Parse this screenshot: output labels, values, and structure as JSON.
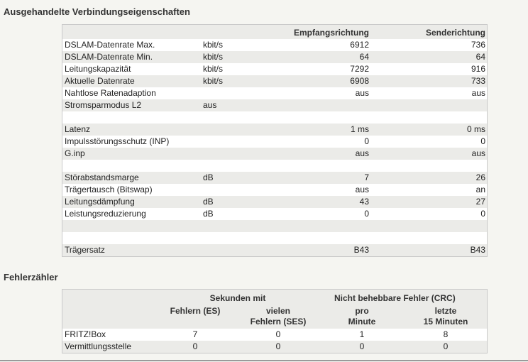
{
  "section1": {
    "title": "Ausgehandelte Verbindungseigenschaften",
    "header": {
      "recv": "Empfangsrichtung",
      "send": "Senderichtung"
    },
    "rows": [
      {
        "label": "DSLAM-Datenrate Max.",
        "unit": "kbit/s",
        "recv": "6912",
        "send": "736"
      },
      {
        "label": "DSLAM-Datenrate Min.",
        "unit": "kbit/s",
        "recv": "64",
        "send": "64"
      },
      {
        "label": "Leitungskapazität",
        "unit": "kbit/s",
        "recv": "7292",
        "send": "916"
      },
      {
        "label": "Aktuelle Datenrate",
        "unit": "kbit/s",
        "recv": "6908",
        "send": "733"
      },
      {
        "label": "Nahtlose Ratenadaption",
        "unit": "",
        "recv": "aus",
        "send": "aus"
      },
      {
        "label": "Stromsparmodus L2",
        "unit": "aus",
        "recv": "",
        "send": ""
      },
      {
        "label": "",
        "unit": "",
        "recv": "",
        "send": ""
      },
      {
        "label": "Latenz",
        "unit": "",
        "recv": "1 ms",
        "send": "0 ms"
      },
      {
        "label": "Impulsstörungsschutz (INP)",
        "unit": "",
        "recv": "0",
        "send": "0"
      },
      {
        "label": "G.inp",
        "unit": "",
        "recv": "aus",
        "send": "aus"
      },
      {
        "label": "",
        "unit": "",
        "recv": "",
        "send": ""
      },
      {
        "label": "Störabstandsmarge",
        "unit": "dB",
        "recv": "7",
        "send": "26"
      },
      {
        "label": "Trägertausch (Bitswap)",
        "unit": "",
        "recv": "aus",
        "send": "an"
      },
      {
        "label": "Leitungsdämpfung",
        "unit": "dB",
        "recv": "43",
        "send": "27"
      },
      {
        "label": "Leistungsreduzierung",
        "unit": "dB",
        "recv": "0",
        "send": "0"
      },
      {
        "label": "",
        "unit": "",
        "recv": "",
        "send": ""
      },
      {
        "label": "",
        "unit": "",
        "recv": "",
        "send": ""
      },
      {
        "label": "Trägersatz",
        "unit": "",
        "recv": "B43",
        "send": "B43"
      }
    ]
  },
  "section2": {
    "title": "Fehlerzähler",
    "group1": "Sekunden mit",
    "group2": "Nicht behebbare Fehler (CRC)",
    "col_es": "Fehlern (ES)",
    "col_ses_1": "vielen",
    "col_ses_2": "Fehlern (SES)",
    "col_pro_1": "pro",
    "col_pro_2": "Minute",
    "col_15_1": "letzte",
    "col_15_2": "15 Minuten",
    "rows": [
      {
        "label": "FRITZ!Box",
        "es": "7",
        "ses": "0",
        "pro": "1",
        "last15": "8"
      },
      {
        "label": "Vermittlungsstelle",
        "es": "0",
        "ses": "0",
        "pro": "0",
        "last15": "0"
      }
    ]
  }
}
